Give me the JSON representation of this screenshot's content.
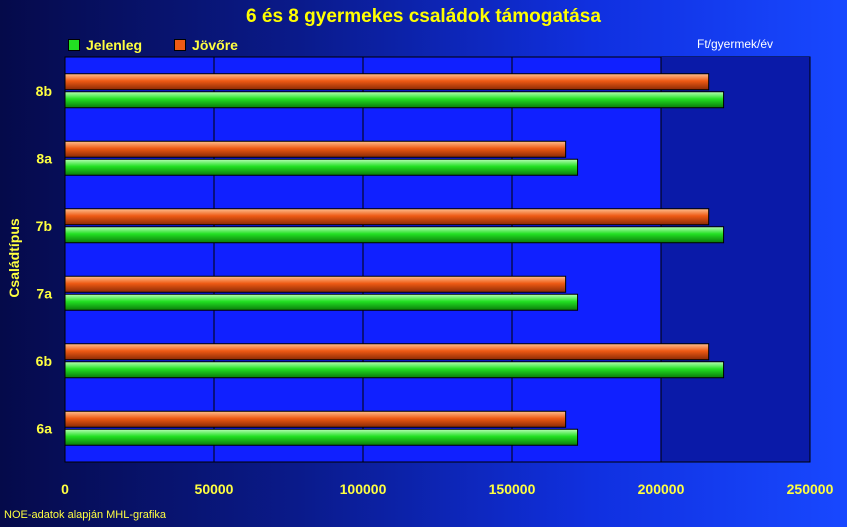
{
  "chart_data": {
    "type": "bar",
    "orientation": "horizontal",
    "title": "6 és 8 gyermekes családok támogatása",
    "unit_label": "Ft/gyermek/év",
    "ylabel": "Családtípus",
    "xlabel": "",
    "categories": [
      "6a",
      "6b",
      "7a",
      "7b",
      "8a",
      "8b"
    ],
    "series": [
      {
        "name": "Jelenleg",
        "color": "#22e022",
        "values": [
          172000,
          221000,
          172000,
          221000,
          172000,
          221000
        ]
      },
      {
        "name": "Jövőre",
        "color": "#ee5a14",
        "values": [
          168000,
          216000,
          168000,
          216000,
          168000,
          216000
        ]
      }
    ],
    "xlim": [
      0,
      250000
    ],
    "xticks": [
      0,
      50000,
      100000,
      150000,
      200000,
      250000
    ],
    "xtick_labels": [
      "0",
      "50000",
      "100000",
      "150000",
      "200000",
      "250000"
    ],
    "grid": true,
    "legend_position": "top-left",
    "source_note": "NOE-adatok alapján MHL-grafika"
  }
}
